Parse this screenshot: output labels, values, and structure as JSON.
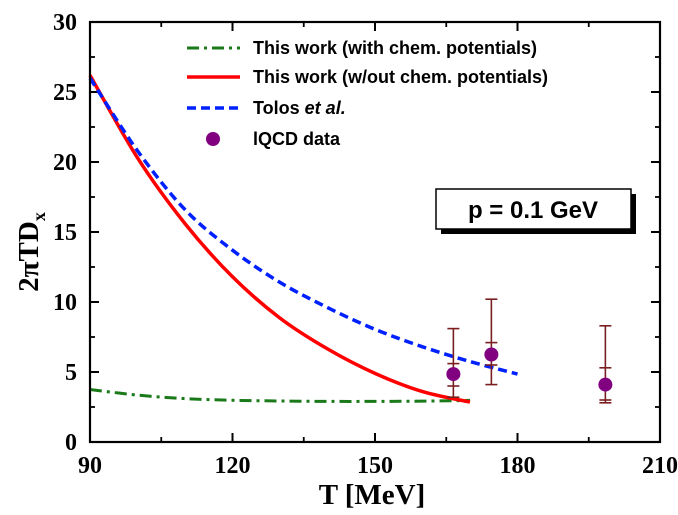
{
  "chart_data": {
    "type": "line",
    "xlabel": "T [MeV]",
    "ylabel_parts": [
      "2",
      "π",
      "TD",
      "x"
    ],
    "xlim": [
      90,
      210
    ],
    "ylim": [
      0,
      30
    ],
    "xticks": [
      90,
      120,
      150,
      180,
      210
    ],
    "yticks": [
      0,
      5,
      10,
      15,
      20,
      25,
      30
    ],
    "legend_position": "top-left",
    "annotation": "p = 0.1 GeV",
    "series": [
      {
        "name": "This work (with chem. potentials)",
        "style": "dash-dot",
        "color": "#1a7a1a",
        "x": [
          90,
          100,
          110,
          120,
          130,
          140,
          150,
          160,
          170
        ],
        "y": [
          3.75,
          3.35,
          3.1,
          2.98,
          2.93,
          2.9,
          2.9,
          2.92,
          2.97
        ]
      },
      {
        "name": "This work (w/out chem. potentials)",
        "style": "solid",
        "color": "#ff0000",
        "x": [
          90,
          100,
          110,
          120,
          130,
          140,
          150,
          160,
          170
        ],
        "y": [
          26.2,
          20.3,
          15.6,
          11.8,
          8.85,
          6.65,
          4.9,
          3.6,
          2.85
        ]
      },
      {
        "name_parts": [
          "Tolos ",
          "et al."
        ],
        "style": "dash",
        "color": "#0020ff",
        "x": [
          90,
          100,
          110,
          120,
          130,
          140,
          150,
          160,
          170,
          180
        ],
        "y": [
          26.0,
          20.8,
          16.6,
          13.7,
          11.4,
          9.6,
          8.05,
          6.8,
          5.75,
          4.85
        ]
      },
      {
        "name": "lQCD data",
        "style": "points",
        "color": "#800080",
        "errbar_color": "#7a1f1f",
        "points": [
          {
            "x": 166.5,
            "y": 4.85,
            "lo_outer": 3.2,
            "hi_outer": 8.1,
            "lo_inner": 4.0,
            "hi_inner": 5.6
          },
          {
            "x": 174.5,
            "y": 6.25,
            "lo_outer": 4.1,
            "hi_outer": 10.2,
            "lo_inner": 5.5,
            "hi_inner": 7.1
          },
          {
            "x": 198.5,
            "y": 4.1,
            "lo_outer": 2.8,
            "hi_outer": 8.3,
            "lo_inner": 3.0,
            "hi_inner": 5.3
          }
        ]
      }
    ]
  }
}
